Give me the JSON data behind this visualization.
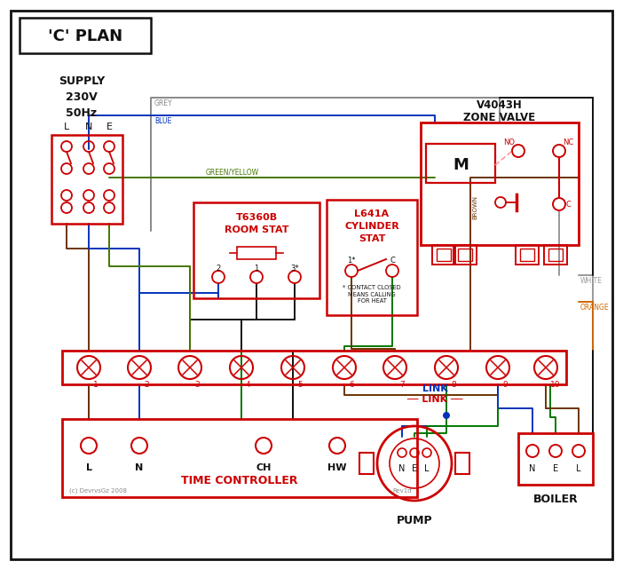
{
  "bg": "#ffffff",
  "red": "#cc0000",
  "blue": "#0033bb",
  "green": "#007700",
  "brown": "#6b3300",
  "grey": "#888888",
  "orange": "#cc6600",
  "white_w": "#999999",
  "gy": "#447700",
  "black": "#111111",
  "pink": "#ff9999",
  "title": "'C' PLAN",
  "zone_valve_1": "V4043H",
  "zone_valve_2": "ZONE VALVE",
  "room_stat_1": "T6360B",
  "room_stat_2": "ROOM STAT",
  "cyl_stat_1": "L641A",
  "cyl_stat_2": "CYLINDER",
  "cyl_stat_3": "STAT",
  "tc_label": "TIME CONTROLLER",
  "pump_label": "PUMP",
  "boiler_label": "BOILER",
  "link_label": "LINK",
  "supply_1": "SUPPLY",
  "supply_2": "230V",
  "supply_3": "50Hz",
  "copyright": "(c) DevrvsGz 2008",
  "revlabel": "Rev1d"
}
